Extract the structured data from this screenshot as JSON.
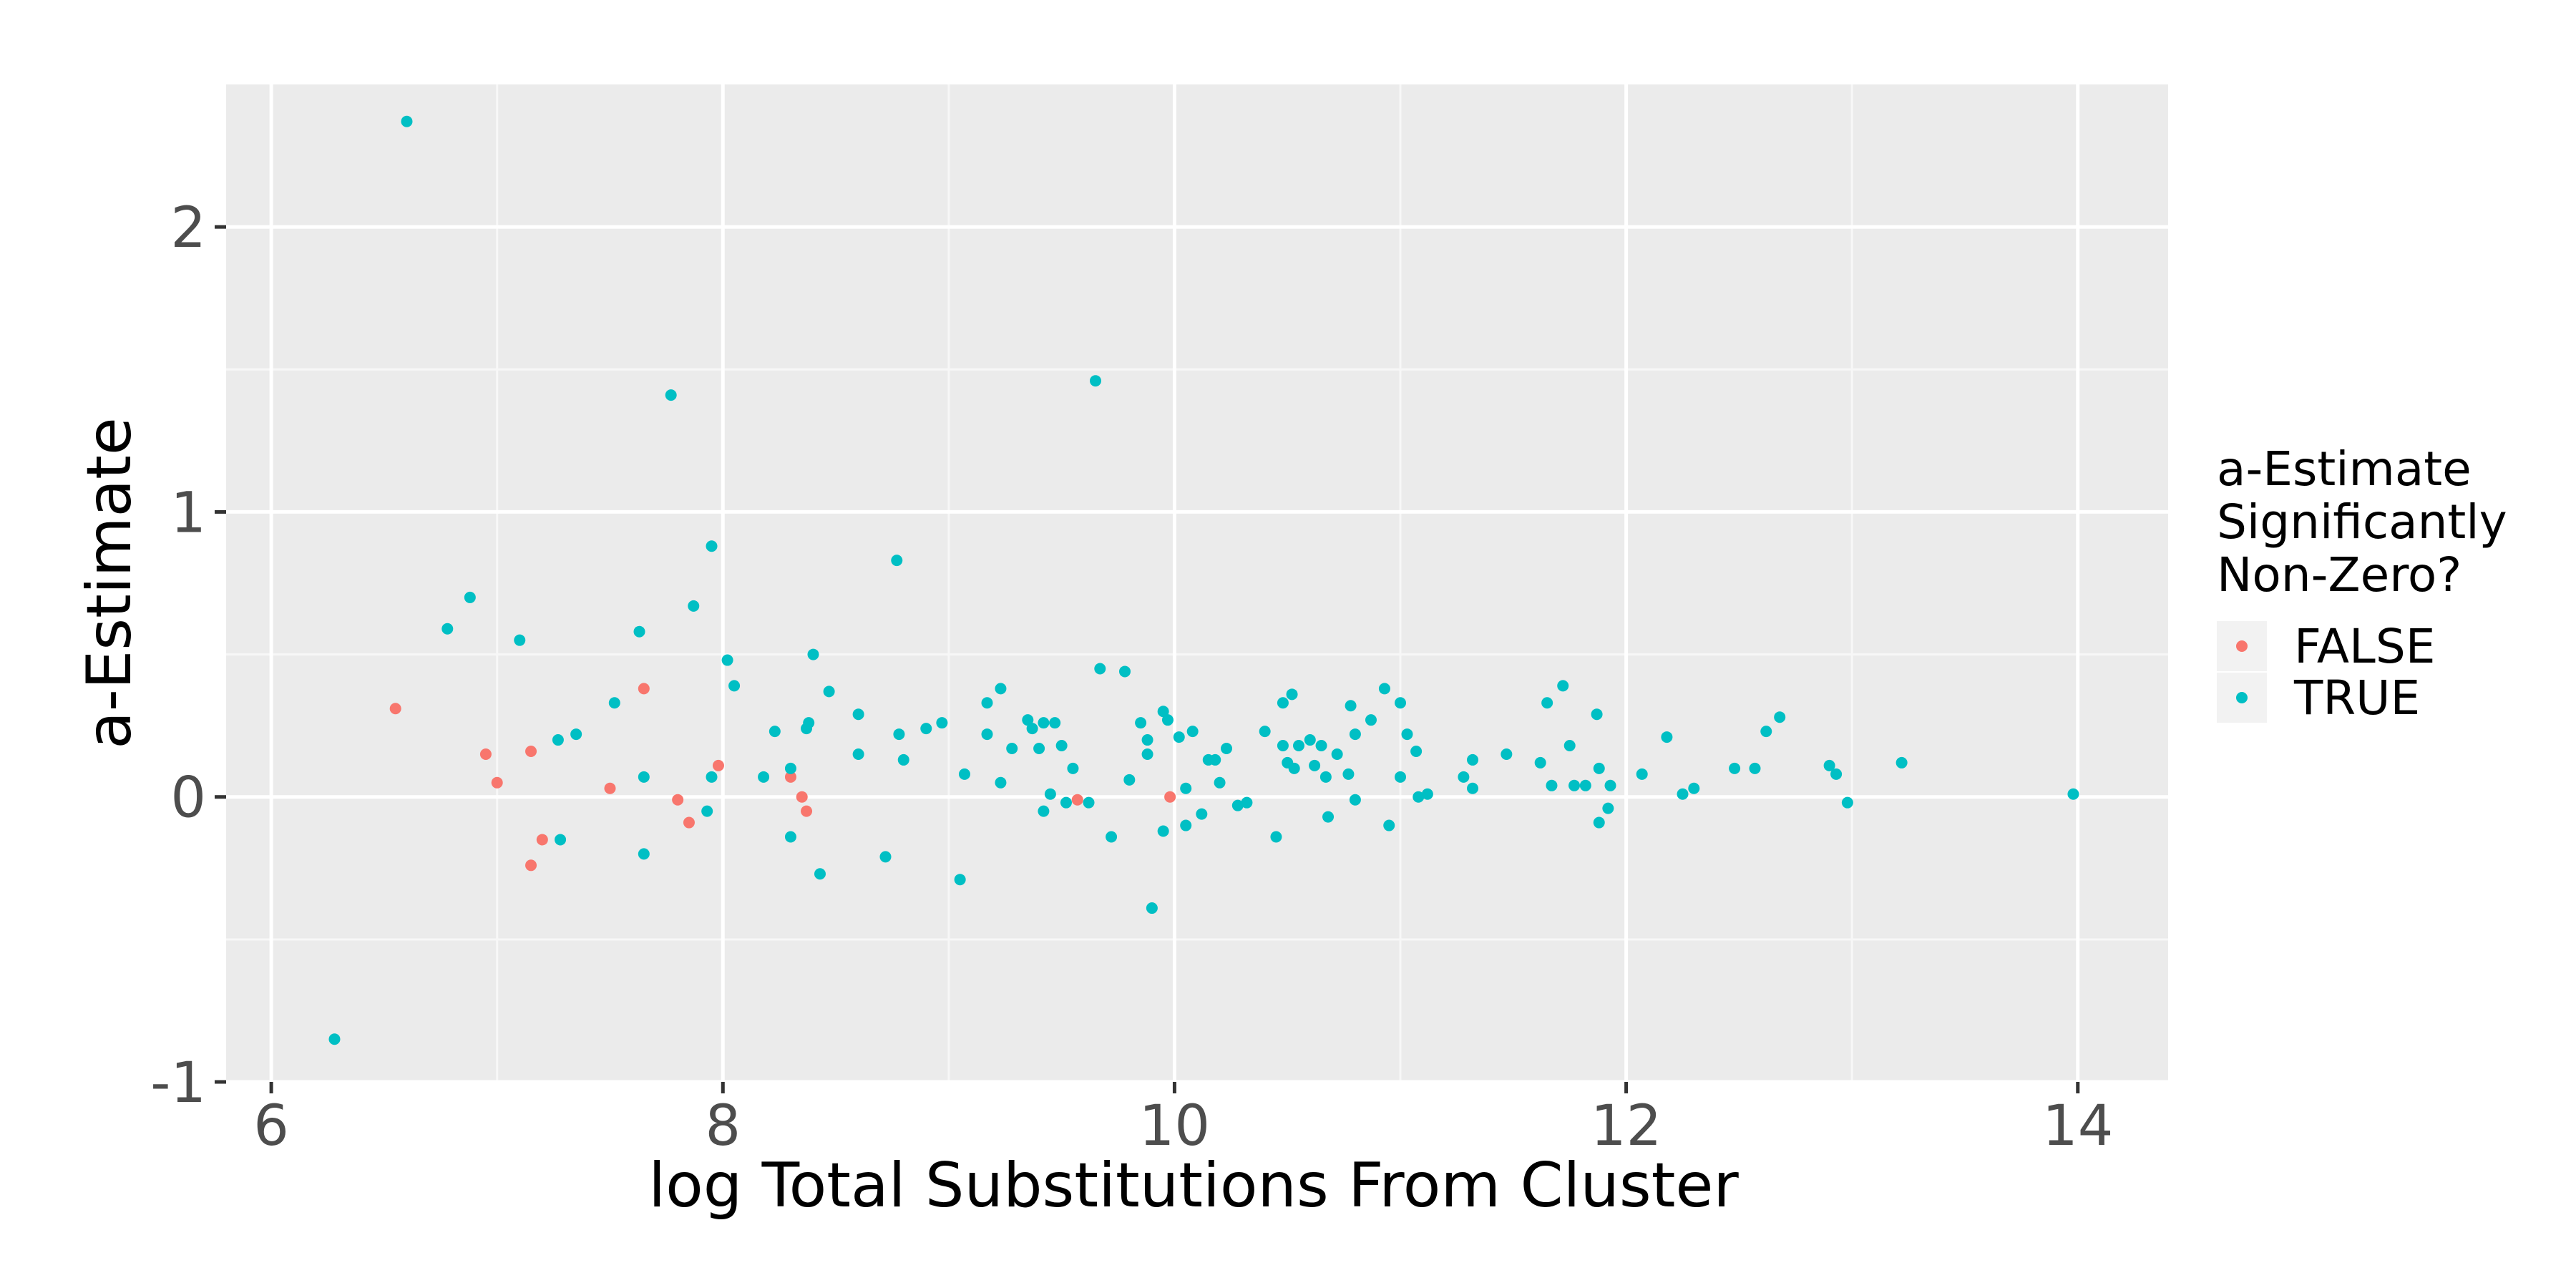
{
  "chart_data": {
    "type": "scatter",
    "xlabel": "log Total Substitutions From Cluster",
    "ylabel": "a-Estimate",
    "xlim": [
      5.8,
      14.4
    ],
    "ylim": [
      -1.0,
      2.5
    ],
    "x_ticks": [
      6,
      8,
      10,
      12,
      14
    ],
    "y_ticks": [
      -1,
      0,
      1,
      2
    ],
    "x_tick_labels": [
      "6",
      "8",
      "10",
      "12",
      "14"
    ],
    "y_tick_labels": [
      "-1",
      "0",
      "1",
      "2"
    ],
    "grid": true,
    "background": "#ebebeb",
    "legend": {
      "title_lines": [
        "a-Estimate",
        "Significantly",
        "Non-Zero?"
      ],
      "placement": "right"
    },
    "series": [
      {
        "name": "FALSE",
        "color": "#f8766d",
        "points": [
          [
            6.55,
            0.31
          ],
          [
            6.95,
            0.15
          ],
          [
            7.0,
            0.05
          ],
          [
            7.15,
            0.16
          ],
          [
            7.15,
            -0.24
          ],
          [
            7.2,
            -0.15
          ],
          [
            7.5,
            0.03
          ],
          [
            7.65,
            0.38
          ],
          [
            7.8,
            -0.01
          ],
          [
            7.85,
            -0.09
          ],
          [
            7.98,
            0.11
          ],
          [
            8.3,
            0.07
          ],
          [
            8.35,
            0.0
          ],
          [
            8.37,
            -0.05
          ],
          [
            9.57,
            -0.01
          ],
          [
            9.98,
            0.0
          ]
        ]
      },
      {
        "name": "TRUE",
        "color": "#00bfc4",
        "points": [
          [
            6.28,
            -0.85
          ],
          [
            6.6,
            2.37
          ],
          [
            6.78,
            0.59
          ],
          [
            6.88,
            0.7
          ],
          [
            7.1,
            0.55
          ],
          [
            7.27,
            0.2
          ],
          [
            7.28,
            -0.15
          ],
          [
            7.35,
            0.22
          ],
          [
            7.52,
            0.33
          ],
          [
            7.63,
            0.58
          ],
          [
            7.65,
            0.07
          ],
          [
            7.65,
            -0.2
          ],
          [
            7.77,
            1.41
          ],
          [
            7.87,
            0.67
          ],
          [
            7.93,
            -0.05
          ],
          [
            7.95,
            0.07
          ],
          [
            7.95,
            0.88
          ],
          [
            8.02,
            0.48
          ],
          [
            8.05,
            0.39
          ],
          [
            8.18,
            0.07
          ],
          [
            8.23,
            0.23
          ],
          [
            8.3,
            0.1
          ],
          [
            8.3,
            -0.14
          ],
          [
            8.37,
            0.24
          ],
          [
            8.38,
            0.26
          ],
          [
            8.4,
            0.5
          ],
          [
            8.43,
            -0.27
          ],
          [
            8.47,
            0.37
          ],
          [
            8.6,
            0.29
          ],
          [
            8.6,
            0.15
          ],
          [
            8.72,
            -0.21
          ],
          [
            8.77,
            0.83
          ],
          [
            8.78,
            0.22
          ],
          [
            8.8,
            0.13
          ],
          [
            8.9,
            0.24
          ],
          [
            8.97,
            0.26
          ],
          [
            9.05,
            -0.29
          ],
          [
            9.07,
            0.08
          ],
          [
            9.17,
            0.33
          ],
          [
            9.17,
            0.22
          ],
          [
            9.23,
            0.38
          ],
          [
            9.23,
            0.05
          ],
          [
            9.28,
            0.17
          ],
          [
            9.35,
            0.27
          ],
          [
            9.37,
            0.24
          ],
          [
            9.4,
            0.17
          ],
          [
            9.42,
            0.26
          ],
          [
            9.42,
            -0.05
          ],
          [
            9.45,
            0.01
          ],
          [
            9.47,
            0.26
          ],
          [
            9.5,
            0.18
          ],
          [
            9.52,
            -0.02
          ],
          [
            9.55,
            0.1
          ],
          [
            9.62,
            -0.02
          ],
          [
            9.65,
            1.46
          ],
          [
            9.67,
            0.45
          ],
          [
            9.72,
            -0.14
          ],
          [
            9.78,
            0.44
          ],
          [
            9.8,
            0.06
          ],
          [
            9.85,
            0.26
          ],
          [
            9.88,
            0.2
          ],
          [
            9.88,
            0.15
          ],
          [
            9.9,
            -0.39
          ],
          [
            9.95,
            0.3
          ],
          [
            9.95,
            -0.12
          ],
          [
            9.97,
            0.27
          ],
          [
            10.02,
            0.21
          ],
          [
            10.05,
            -0.1
          ],
          [
            10.05,
            0.03
          ],
          [
            10.08,
            0.23
          ],
          [
            10.12,
            -0.06
          ],
          [
            10.15,
            0.13
          ],
          [
            10.18,
            0.13
          ],
          [
            10.2,
            0.05
          ],
          [
            10.23,
            0.17
          ],
          [
            10.28,
            -0.03
          ],
          [
            10.32,
            -0.02
          ],
          [
            10.4,
            0.23
          ],
          [
            10.45,
            -0.14
          ],
          [
            10.48,
            0.18
          ],
          [
            10.48,
            0.33
          ],
          [
            10.5,
            0.12
          ],
          [
            10.52,
            0.36
          ],
          [
            10.53,
            0.1
          ],
          [
            10.55,
            0.18
          ],
          [
            10.6,
            0.2
          ],
          [
            10.62,
            0.11
          ],
          [
            10.65,
            0.18
          ],
          [
            10.67,
            0.07
          ],
          [
            10.68,
            -0.07
          ],
          [
            10.72,
            0.15
          ],
          [
            10.77,
            0.08
          ],
          [
            10.78,
            0.32
          ],
          [
            10.8,
            -0.01
          ],
          [
            10.8,
            0.22
          ],
          [
            10.87,
            0.27
          ],
          [
            10.93,
            0.38
          ],
          [
            10.95,
            -0.1
          ],
          [
            11.0,
            0.07
          ],
          [
            11.0,
            0.33
          ],
          [
            11.03,
            0.22
          ],
          [
            11.07,
            0.16
          ],
          [
            11.08,
            0.0
          ],
          [
            11.12,
            0.01
          ],
          [
            11.28,
            0.07
          ],
          [
            11.32,
            0.13
          ],
          [
            11.32,
            0.03
          ],
          [
            11.47,
            0.15
          ],
          [
            11.62,
            0.12
          ],
          [
            11.65,
            0.33
          ],
          [
            11.67,
            0.04
          ],
          [
            11.72,
            0.39
          ],
          [
            11.75,
            0.18
          ],
          [
            11.77,
            0.04
          ],
          [
            11.82,
            0.04
          ],
          [
            11.87,
            0.29
          ],
          [
            11.88,
            0.1
          ],
          [
            11.88,
            -0.09
          ],
          [
            11.92,
            -0.04
          ],
          [
            11.93,
            0.04
          ],
          [
            12.07,
            0.08
          ],
          [
            12.18,
            0.21
          ],
          [
            12.25,
            0.01
          ],
          [
            12.3,
            0.03
          ],
          [
            12.48,
            0.1
          ],
          [
            12.57,
            0.1
          ],
          [
            12.62,
            0.23
          ],
          [
            12.68,
            0.28
          ],
          [
            12.9,
            0.11
          ],
          [
            12.93,
            0.08
          ],
          [
            12.98,
            -0.02
          ],
          [
            13.22,
            0.12
          ],
          [
            13.98,
            0.01
          ]
        ]
      }
    ]
  }
}
